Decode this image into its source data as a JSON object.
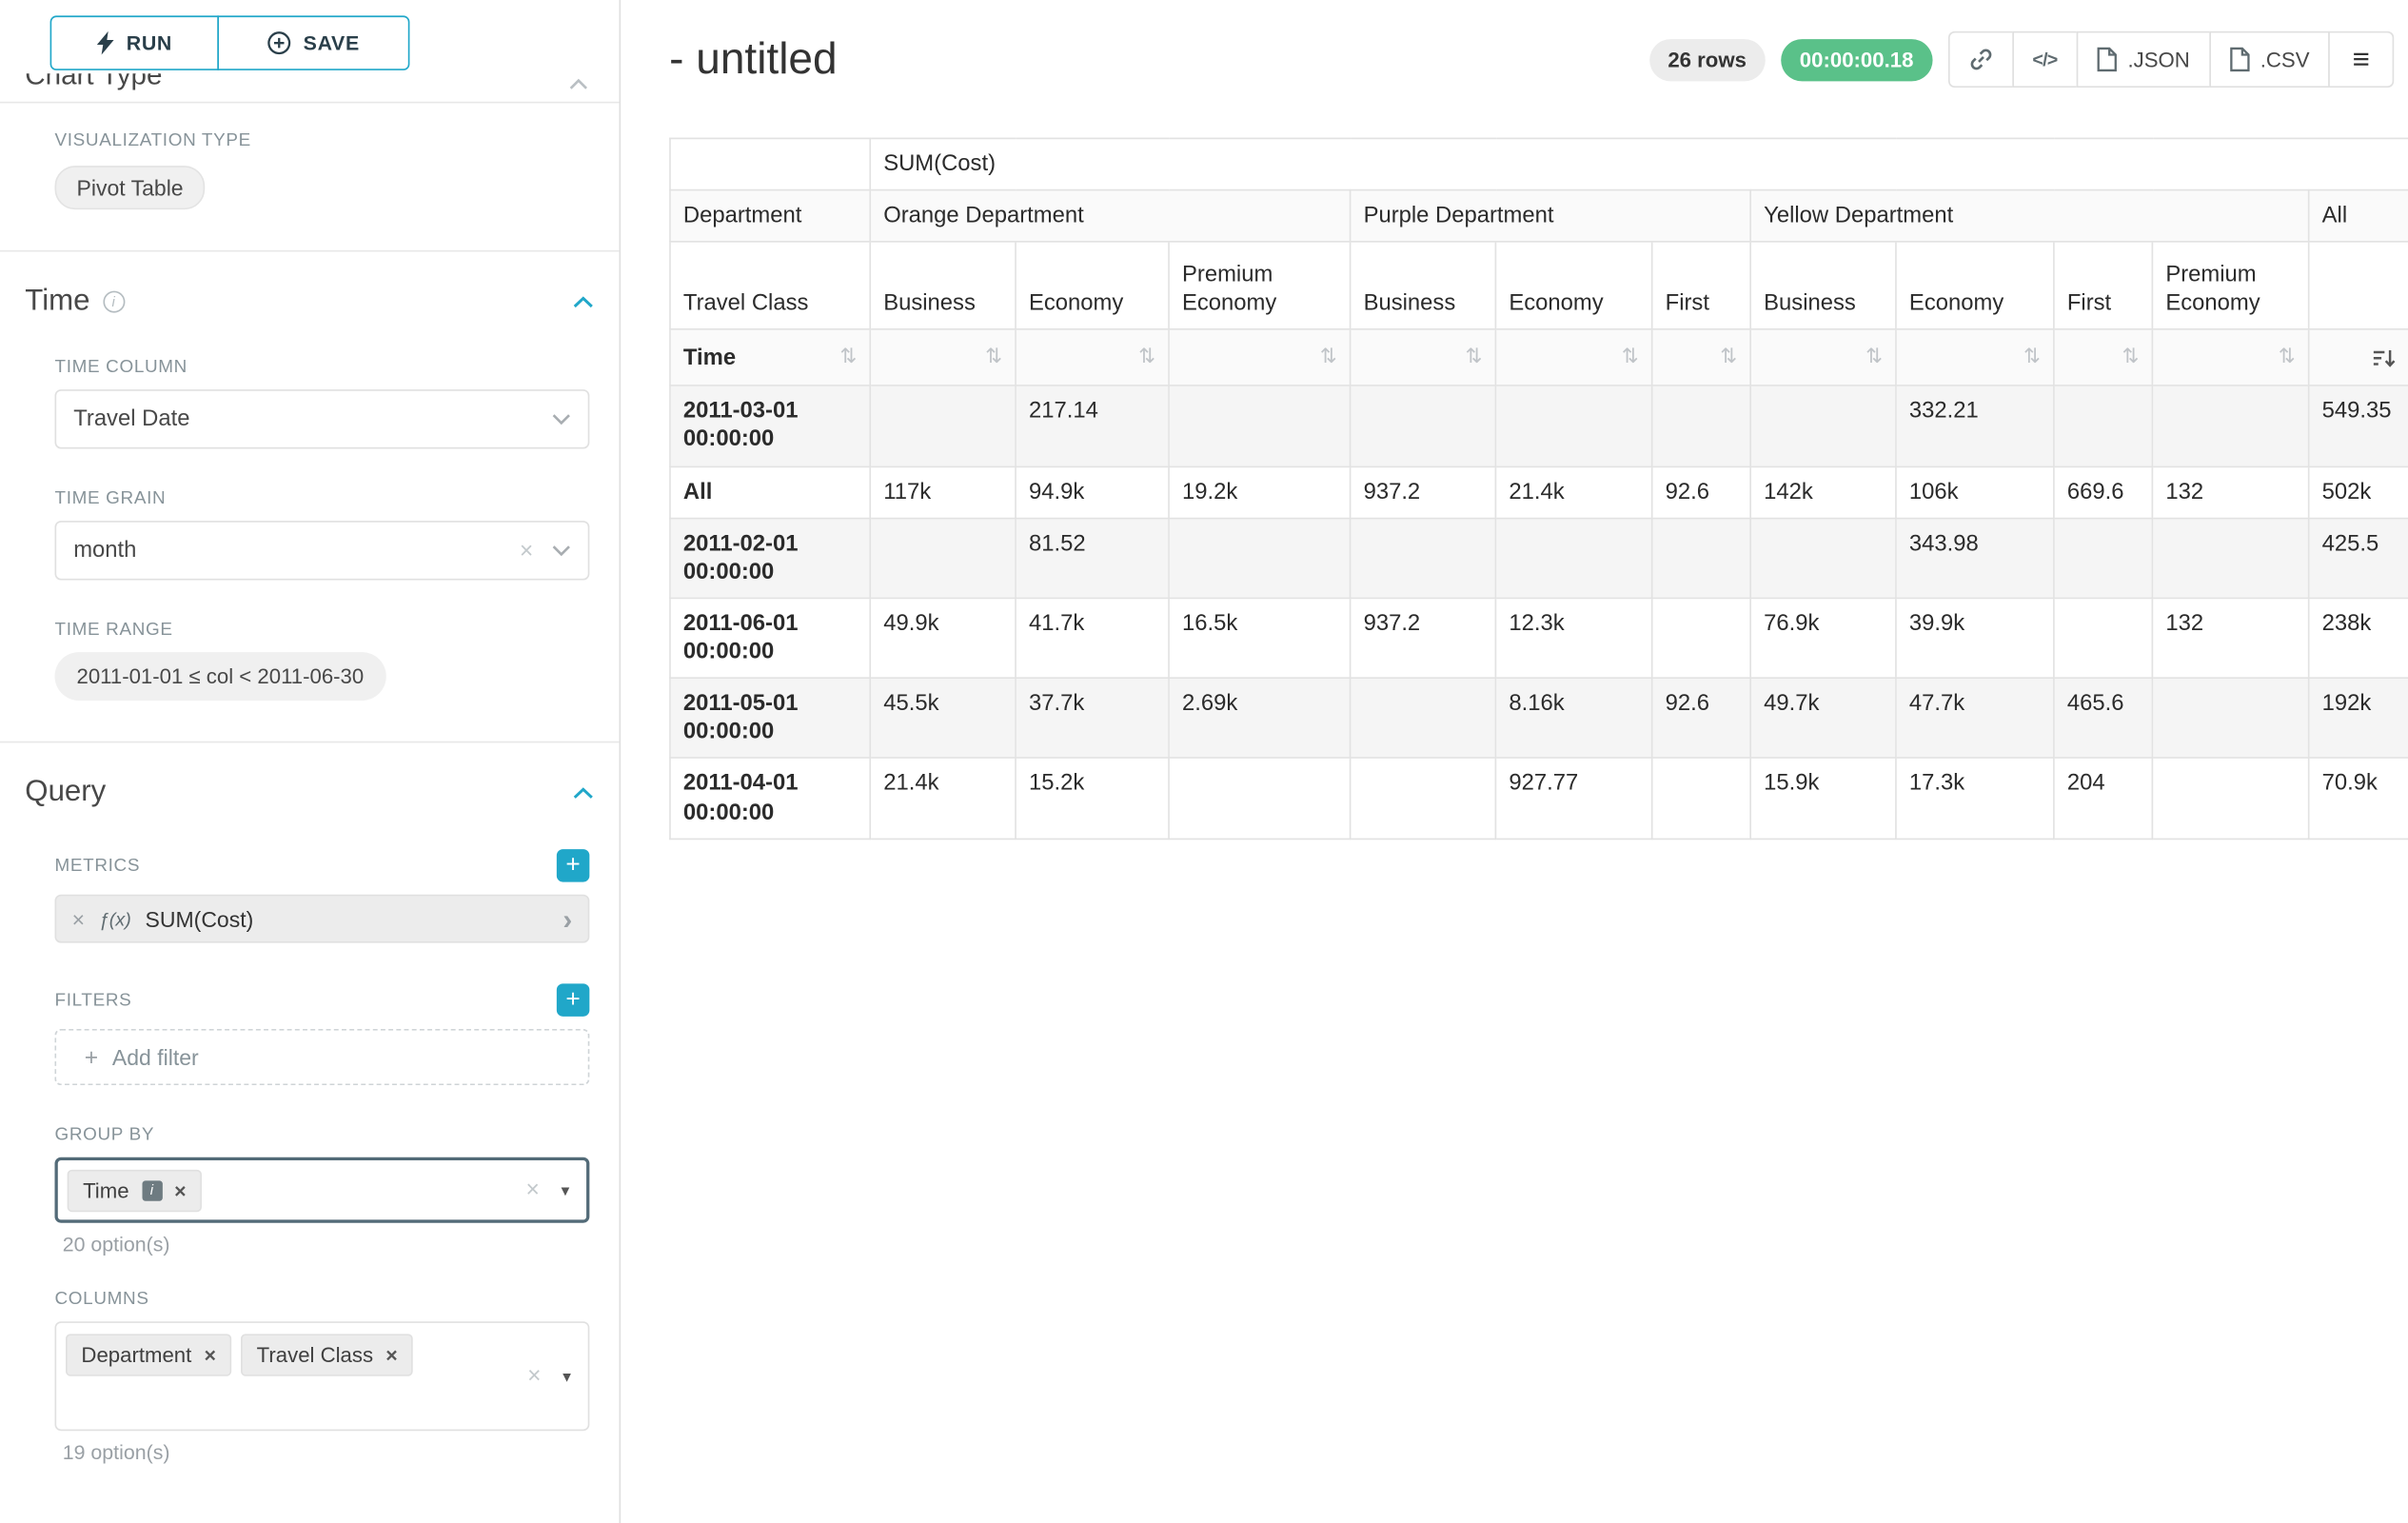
{
  "colors": {
    "accent": "#20a7c9",
    "timer_green": "#5ac189"
  },
  "icons": {
    "plus": "+",
    "clear": "×",
    "caret_right": "›",
    "caret_down_solid": "▼",
    "info": "i",
    "chip_info": "i",
    "menu": "≡",
    "code": "</>",
    "sort": "⇅"
  },
  "sidebar": {
    "run_button": "RUN",
    "save_button": "SAVE",
    "clipped_section_title": "Chart Type",
    "visualization": {
      "label": "VISUALIZATION TYPE",
      "value": "Pivot Table"
    },
    "time": {
      "title": "Time",
      "time_column": {
        "label": "TIME COLUMN",
        "value": "Travel Date"
      },
      "time_grain": {
        "label": "TIME GRAIN",
        "value": "month"
      },
      "time_range": {
        "label": "TIME RANGE",
        "value": "2011-01-01 ≤ col < 2011-06-30"
      }
    },
    "query": {
      "title": "Query",
      "metrics": {
        "label": "METRICS",
        "fx": "ƒ(x)",
        "value": "SUM(Cost)"
      },
      "filters": {
        "label": "FILTERS",
        "placeholder": "Add filter"
      },
      "group_by": {
        "label": "GROUP BY",
        "chips": [
          "Time"
        ],
        "options_hint": "20 option(s)"
      },
      "columns": {
        "label": "COLUMNS",
        "chips": [
          "Department",
          "Travel Class"
        ],
        "options_hint": "19 option(s)"
      }
    }
  },
  "header": {
    "title": "- untitled",
    "rows_badge": "26 rows",
    "timer_badge": "00:00:00.18",
    "json_button": ".JSON",
    "csv_button": ".CSV"
  },
  "chart_data": {
    "type": "table",
    "title": "SUM(Cost)",
    "row_dimension": "Time",
    "column_dimension_primary": "Department",
    "column_dimension_secondary": "Travel Class",
    "sort": {
      "column": "All",
      "direction": "desc"
    },
    "column_groups": [
      {
        "department": "Orange Department",
        "travel_classes": [
          "Business",
          "Economy",
          "Premium Economy"
        ]
      },
      {
        "department": "Purple Department",
        "travel_classes": [
          "Business",
          "Economy",
          "First"
        ]
      },
      {
        "department": "Yellow Department",
        "travel_classes": [
          "Business",
          "Economy",
          "First",
          "Premium Economy"
        ]
      },
      {
        "department": "All",
        "travel_classes": [
          ""
        ]
      }
    ],
    "rows": [
      {
        "label": "2011-03-01 00:00:00",
        "values": [
          "",
          "217.14",
          "",
          "",
          "",
          "",
          "",
          "332.21",
          "",
          "",
          "549.35"
        ]
      },
      {
        "label": "All",
        "values": [
          "117k",
          "94.9k",
          "19.2k",
          "937.2",
          "21.4k",
          "92.6",
          "142k",
          "106k",
          "669.6",
          "132",
          "502k"
        ]
      },
      {
        "label": "2011-02-01 00:00:00",
        "values": [
          "",
          "81.52",
          "",
          "",
          "",
          "",
          "",
          "343.98",
          "",
          "",
          "425.5"
        ]
      },
      {
        "label": "2011-06-01 00:00:00",
        "values": [
          "49.9k",
          "41.7k",
          "16.5k",
          "937.2",
          "12.3k",
          "",
          "76.9k",
          "39.9k",
          "",
          "132",
          "238k"
        ]
      },
      {
        "label": "2011-05-01 00:00:00",
        "values": [
          "45.5k",
          "37.7k",
          "2.69k",
          "",
          "8.16k",
          "92.6",
          "49.7k",
          "47.7k",
          "465.6",
          "",
          "192k"
        ]
      },
      {
        "label": "2011-04-01 00:00:00",
        "values": [
          "21.4k",
          "15.2k",
          "",
          "",
          "927.77",
          "",
          "15.9k",
          "17.3k",
          "204",
          "",
          "70.9k"
        ]
      }
    ]
  }
}
